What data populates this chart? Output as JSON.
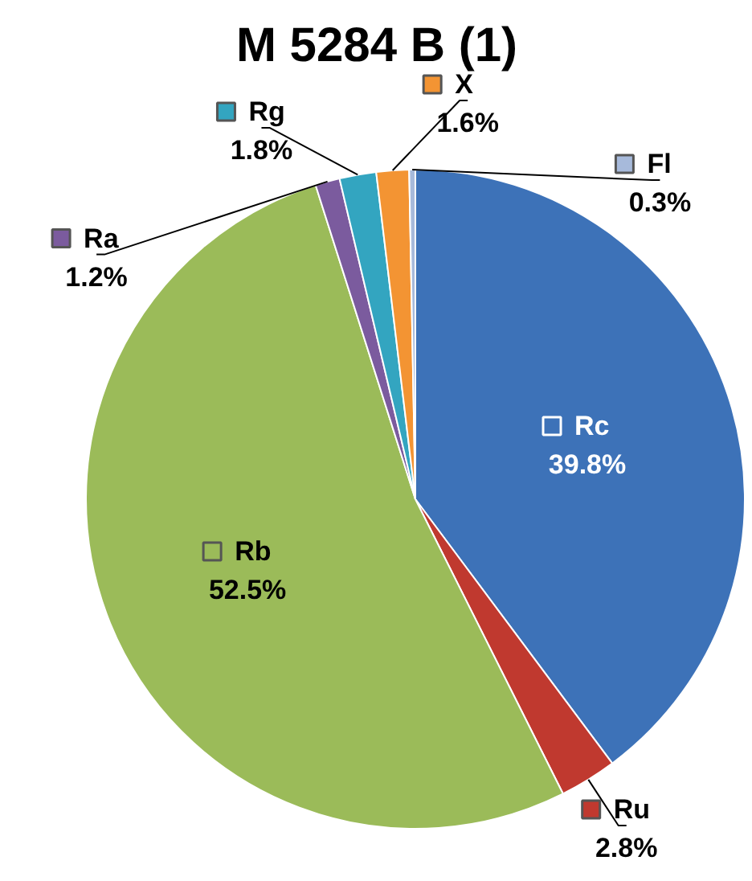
{
  "chart_data": {
    "type": "pie",
    "title": "M 5284 B (1)",
    "categories": [
      "Rc",
      "Ru",
      "Rb",
      "Ra",
      "Rg",
      "X",
      "Fl"
    ],
    "values": [
      39.8,
      2.8,
      52.5,
      1.2,
      1.8,
      1.6,
      0.3
    ],
    "value_labels": [
      "39.8%",
      "2.8%",
      "52.5%",
      "1.2%",
      "1.8%",
      "1.6%",
      "0.3%"
    ],
    "legend": true,
    "colors": [
      "#3d72b8",
      "#c0392f",
      "#9bbb59",
      "#7b5b9e",
      "#33a5c0",
      "#f39433",
      "#a7badb"
    ]
  }
}
